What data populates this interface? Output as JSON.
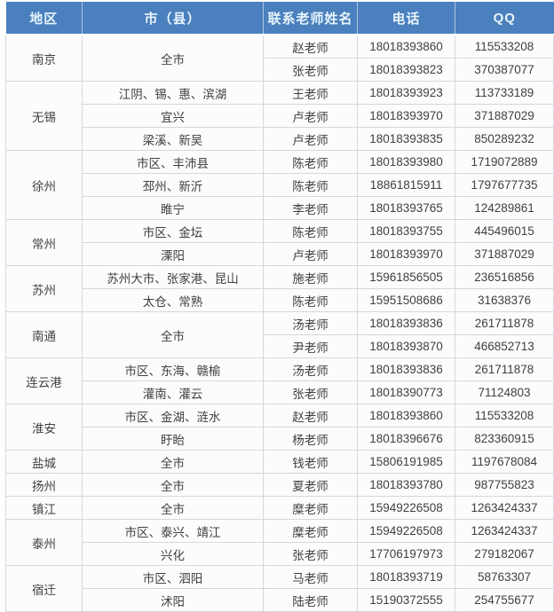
{
  "colors": {
    "header_bg": "#4a80bd",
    "header_text": "#e8f4fb",
    "body_bg": "#fcfcfc",
    "body_text": "#3f3f3f",
    "grid_line": "#d4d8dc"
  },
  "table": {
    "headers": [
      "地区",
      "市（县）",
      "联系老师姓名",
      "电话",
      "QQ"
    ],
    "rows": [
      [
        "南京",
        "全市",
        "赵老师",
        "18018393860",
        "115533208"
      ],
      [
        "张老师",
        "18018393823",
        "370387077"
      ],
      [
        "无锡",
        "江阴、锡、惠、滨湖",
        "王老师",
        "18018393923",
        "113733189"
      ],
      [
        "宜兴",
        "卢老师",
        "18018393970",
        "371887029"
      ],
      [
        "梁溪、新吴",
        "卢老师",
        "18018393835",
        "850289232"
      ],
      [
        "徐州",
        "市区、丰沛县",
        "陈老师",
        "18018393980",
        "1719072889"
      ],
      [
        "邳州、新沂",
        "陈老师",
        "18861815911",
        "1797677735"
      ],
      [
        "睢宁",
        "李老师",
        "18018393765",
        "124289861"
      ],
      [
        "常州",
        "市区、金坛",
        "陈老师",
        "18018393755",
        "445496015"
      ],
      [
        "溧阳",
        "卢老师",
        "18018393970",
        "371887029"
      ],
      [
        "苏州",
        "苏州大市、张家港、昆山",
        "施老师",
        "15961856505",
        "236516856"
      ],
      [
        "太仓、常熟",
        "陈老师",
        "15951508686",
        "31638376"
      ],
      [
        "南通",
        "全市",
        "汤老师",
        "18018393836",
        "261711878"
      ],
      [
        "尹老师",
        "18018393870",
        "466852713"
      ],
      [
        "连云港",
        "市区、东海、赣榆",
        "汤老师",
        "18018393836",
        "261711878"
      ],
      [
        "灌南、灌云",
        "张老师",
        "18018390773",
        "71124803"
      ],
      [
        "淮安",
        "市区、金湖、涟水",
        "赵老师",
        "18018393860",
        "115533208"
      ],
      [
        "盱眙",
        "杨老师",
        "18018396676",
        "823360915"
      ],
      [
        "盐城",
        "全市",
        "钱老师",
        "15806191985",
        "1197678084"
      ],
      [
        "扬州",
        "全市",
        "夏老师",
        "18018393780",
        "987755823"
      ],
      [
        "镇江",
        "全市",
        "糜老师",
        "15949226508",
        "1263424337"
      ],
      [
        "泰州",
        "市区、泰兴、靖江",
        "糜老师",
        "15949226508",
        "1263424337"
      ],
      [
        "兴化",
        "张老师",
        "17706197973",
        "279182067"
      ],
      [
        "宿迁",
        "市区、泗阳",
        "马老师",
        "18018393719",
        "58763307"
      ],
      [
        "沭阳",
        "陆老师",
        "15190372555",
        "254755677"
      ]
    ]
  }
}
